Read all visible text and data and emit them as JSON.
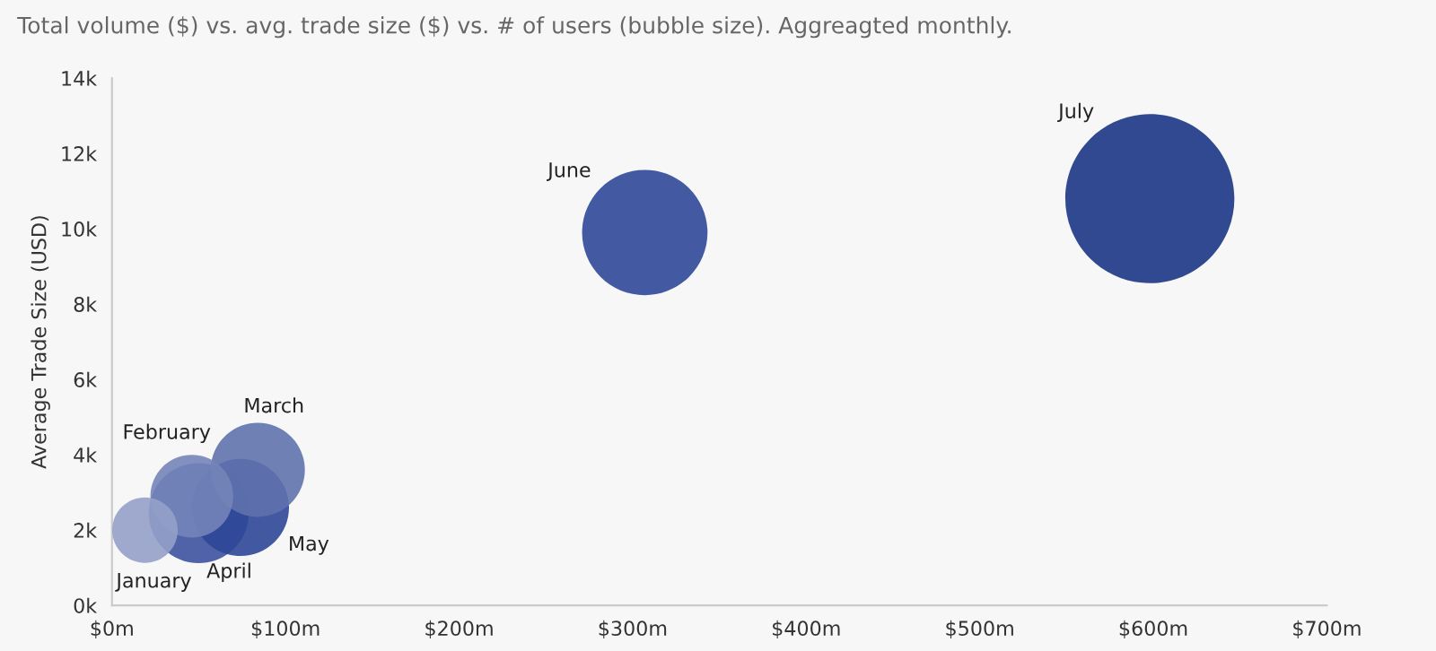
{
  "chart_data": {
    "type": "bubble",
    "title": "Total volume ($) vs. avg. trade size ($) vs. # of users (bubble size). Aggreagted monthly.",
    "ylabel": "Average Trade Size (USD)",
    "x": [
      19,
      46,
      84,
      50,
      74,
      307,
      598
    ],
    "values": [
      2000,
      2900,
      3600,
      2450,
      2600,
      9900,
      10800
    ],
    "sizes": [
      0.15,
      0.24,
      0.31,
      0.35,
      0.33,
      0.55,
      1
    ],
    "colors": [
      "#93a0c8",
      "#7384b8",
      "#5f72ad",
      "#3d529e",
      "#2e4697",
      "#2f4898",
      "#1a3585"
    ],
    "annotations": [
      "January",
      "February",
      "March",
      "April",
      "May",
      "June",
      "July"
    ],
    "xlim": [
      0,
      700
    ],
    "xticks": [
      {
        "value": 0,
        "label": "$0m"
      },
      {
        "value": 100,
        "label": "$100m"
      },
      {
        "value": 200,
        "label": "$200m"
      },
      {
        "value": 300,
        "label": "$300m"
      },
      {
        "value": 400,
        "label": "$400m"
      },
      {
        "value": 500,
        "label": "$500m"
      },
      {
        "value": 600,
        "label": "$600m"
      },
      {
        "value": 700,
        "label": "$700m"
      }
    ],
    "ylim": [
      0,
      14000
    ],
    "yticks": [
      {
        "value": 0,
        "label": "0k"
      },
      {
        "value": 2000,
        "label": "2k"
      },
      {
        "value": 4000,
        "label": "4k"
      },
      {
        "value": 6000,
        "label": "6k"
      },
      {
        "value": 8000,
        "label": "8k"
      },
      {
        "value": 10000,
        "label": "10k"
      },
      {
        "value": 12000,
        "label": "12k"
      },
      {
        "value": 14000,
        "label": "14k"
      }
    ],
    "grid": false
  }
}
